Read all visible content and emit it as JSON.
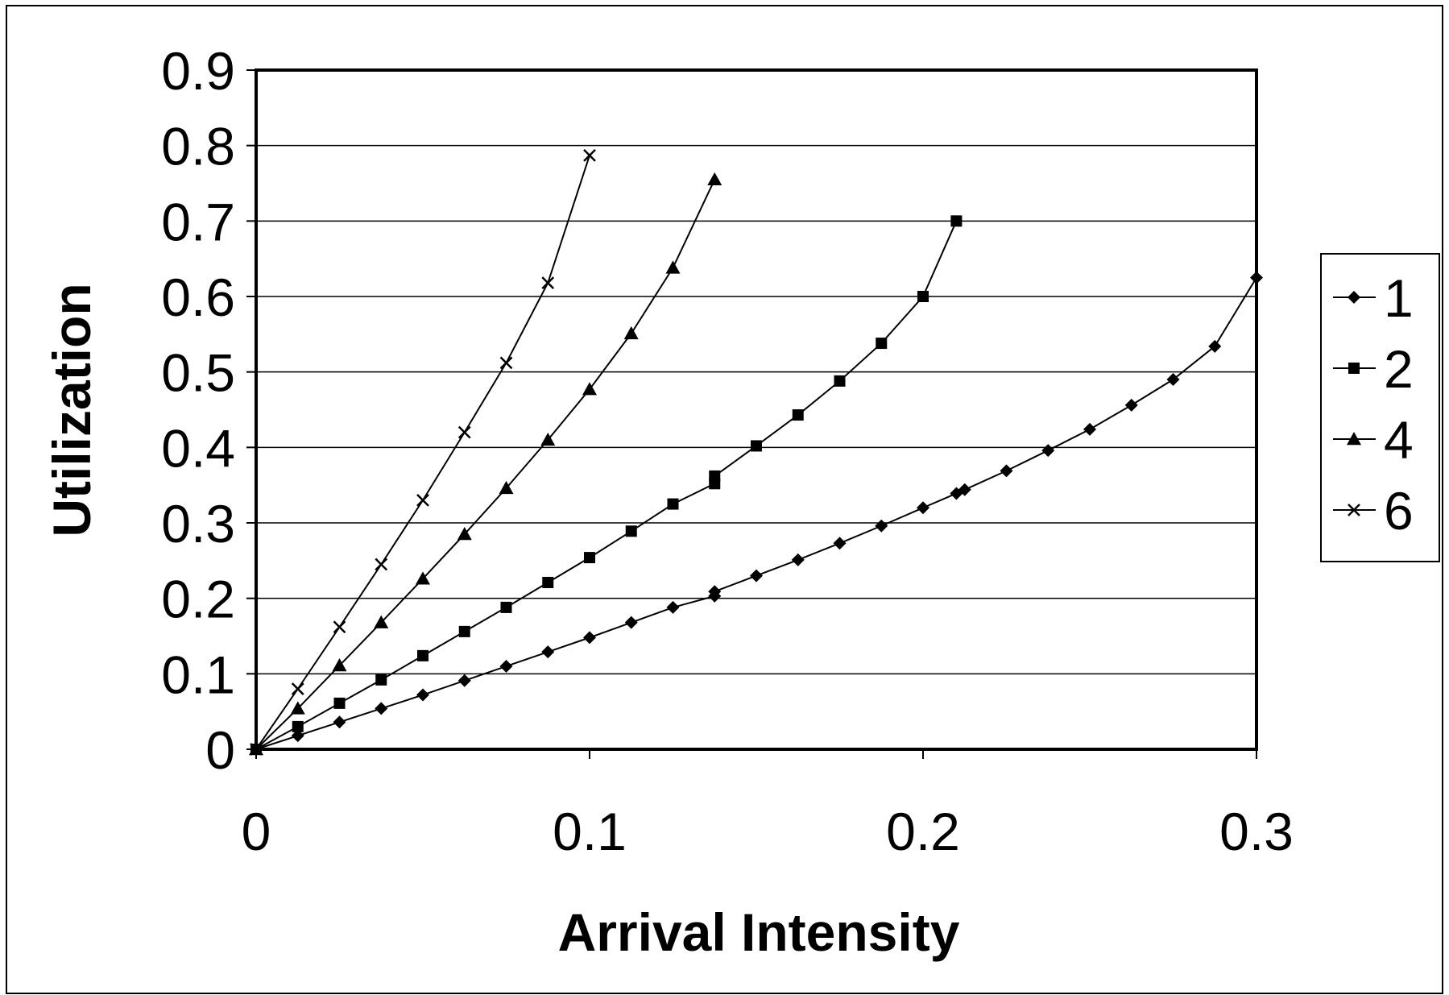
{
  "chart_data": {
    "type": "line",
    "title": "",
    "xlabel": "Arrival Intensity",
    "ylabel": "Utilization",
    "xlim": [
      0,
      0.3
    ],
    "ylim": [
      0,
      0.9
    ],
    "x_ticks": [
      "0",
      "0.1",
      "0.2",
      "0.3"
    ],
    "y_ticks": [
      "0",
      "0.1",
      "0.2",
      "0.3",
      "0.4",
      "0.5",
      "0.6",
      "0.7",
      "0.8",
      "0.9"
    ],
    "grid": "horizontal",
    "legend_position": "right",
    "series": [
      {
        "name": "1",
        "marker": "diamond",
        "points": [
          [
            0,
            0
          ],
          [
            0.0125,
            0.018
          ],
          [
            0.025,
            0.036
          ],
          [
            0.0375,
            0.054
          ],
          [
            0.05,
            0.072
          ],
          [
            0.0625,
            0.091
          ],
          [
            0.075,
            0.11
          ],
          [
            0.0875,
            0.129
          ],
          [
            0.1,
            0.148
          ],
          [
            0.1125,
            0.168
          ],
          [
            0.125,
            0.188
          ],
          [
            0.1375,
            0.203
          ],
          [
            0.1375,
            0.209
          ],
          [
            0.15,
            0.23
          ],
          [
            0.1625,
            0.251
          ],
          [
            0.175,
            0.273
          ],
          [
            0.1875,
            0.296
          ],
          [
            0.2,
            0.32
          ],
          [
            0.21,
            0.339
          ],
          [
            0.2125,
            0.344
          ],
          [
            0.225,
            0.369
          ],
          [
            0.2375,
            0.396
          ],
          [
            0.25,
            0.424
          ],
          [
            0.2625,
            0.456
          ],
          [
            0.275,
            0.49
          ],
          [
            0.2875,
            0.534
          ],
          [
            0.3,
            0.625
          ]
        ]
      },
      {
        "name": "2",
        "marker": "square",
        "points": [
          [
            0,
            0
          ],
          [
            0.0125,
            0.03
          ],
          [
            0.025,
            0.061
          ],
          [
            0.0375,
            0.092
          ],
          [
            0.05,
            0.124
          ],
          [
            0.0625,
            0.156
          ],
          [
            0.075,
            0.188
          ],
          [
            0.0875,
            0.221
          ],
          [
            0.1,
            0.254
          ],
          [
            0.1125,
            0.289
          ],
          [
            0.125,
            0.325
          ],
          [
            0.1375,
            0.352
          ],
          [
            0.1375,
            0.362
          ],
          [
            0.15,
            0.402
          ],
          [
            0.1625,
            0.443
          ],
          [
            0.175,
            0.488
          ],
          [
            0.1875,
            0.538
          ],
          [
            0.2,
            0.6
          ],
          [
            0.21,
            0.7
          ]
        ]
      },
      {
        "name": "4",
        "marker": "triangle",
        "points": [
          [
            0,
            0
          ],
          [
            0.0125,
            0.054
          ],
          [
            0.025,
            0.111
          ],
          [
            0.0375,
            0.168
          ],
          [
            0.05,
            0.226
          ],
          [
            0.0625,
            0.285
          ],
          [
            0.075,
            0.346
          ],
          [
            0.0875,
            0.41
          ],
          [
            0.1,
            0.477
          ],
          [
            0.1125,
            0.551
          ],
          [
            0.125,
            0.638
          ],
          [
            0.1375,
            0.755
          ]
        ]
      },
      {
        "name": "6",
        "marker": "x",
        "points": [
          [
            0,
            0
          ],
          [
            0.0125,
            0.08
          ],
          [
            0.025,
            0.162
          ],
          [
            0.0375,
            0.245
          ],
          [
            0.05,
            0.33
          ],
          [
            0.0625,
            0.42
          ],
          [
            0.075,
            0.512
          ],
          [
            0.0875,
            0.618
          ],
          [
            0.1,
            0.787
          ]
        ]
      }
    ]
  }
}
